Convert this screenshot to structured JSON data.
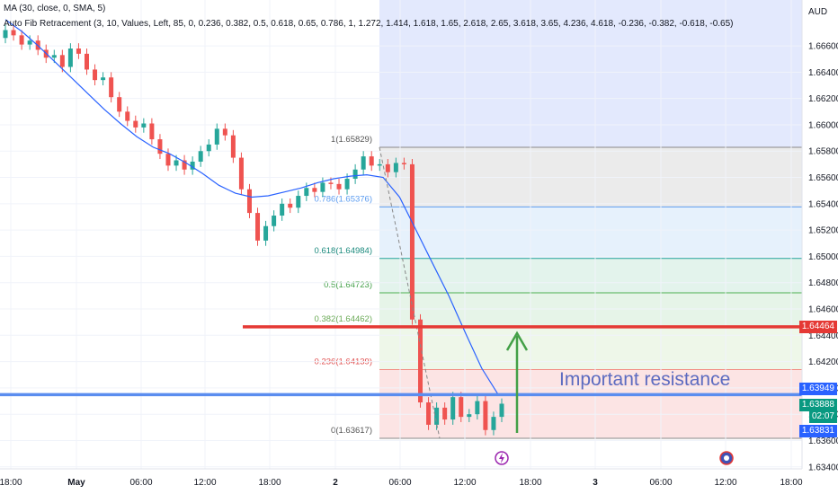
{
  "header": {
    "ma_legend": "MA (30, close, 0, SMA, 5)",
    "fib_legend": "Auto Fib Retracement (3, 10, Values, Left, 85, 0, 0.236, 0.382, 0.5, 0.618, 0.65, 0.786, 1, 1.272, 1.414, 1.618, 1.65, 2.618, 2.65, 3.618, 3.65, 4.236, 4.618, -0.236, -0.382, -0.618, -0.65)"
  },
  "currency": "AUD",
  "annotation": "Important resistance",
  "price_tags": {
    "red_level": "1.64464",
    "blue_level": "1.63949",
    "last_price": "1.63888",
    "countdown": "02:07",
    "low_marker": "1.63831"
  },
  "colors": {
    "up": "#26a69a",
    "down": "#ef5350",
    "ma": "#2962ff",
    "red_line": "#e53935",
    "blue_line": "#5b8def",
    "arrow": "#43a047",
    "annotation": "#5c6bc0"
  },
  "chart_data": {
    "type": "candlestick",
    "y_axis_ticks": [
      "1.66600",
      "1.66400",
      "1.66200",
      "1.66000",
      "1.65800",
      "1.65600",
      "1.65400",
      "1.65200",
      "1.65000",
      "1.64800",
      "1.64600",
      "1.64400",
      "1.64200",
      "1.64000",
      "1.63800",
      "1.63600",
      "1.63400"
    ],
    "x_axis_ticks": [
      "18:00",
      "May",
      "06:00",
      "12:00",
      "18:00",
      "2",
      "06:00",
      "12:00",
      "18:00",
      "3",
      "06:00",
      "12:00",
      "18:00"
    ],
    "ylim": [
      1.634,
      1.6685
    ],
    "fib_levels": [
      {
        "ratio": "1",
        "price": "1.65829",
        "value": 1.65829
      },
      {
        "ratio": "0.786",
        "price": "1.65376",
        "value": 1.65376
      },
      {
        "ratio": "0.618",
        "price": "1.64984",
        "value": 1.64984
      },
      {
        "ratio": "0.5",
        "price": "1.64723",
        "value": 1.64723
      },
      {
        "ratio": "0.382",
        "price": "1.64462",
        "value": 1.64462
      },
      {
        "ratio": "0.236",
        "price": "1.64139",
        "value": 1.64139
      },
      {
        "ratio": "0",
        "price": "1.63617",
        "value": 1.63617
      }
    ],
    "horizontal_lines": [
      {
        "name": "red",
        "value": 1.64464
      },
      {
        "name": "blue",
        "value": 1.63949
      }
    ],
    "close_path": [
      1.6672,
      1.6668,
      1.6661,
      1.6664,
      1.6657,
      1.6651,
      1.6653,
      1.6644,
      1.6658,
      1.6654,
      1.6642,
      1.6634,
      1.6636,
      1.6621,
      1.661,
      1.6603,
      1.6598,
      1.6601,
      1.6589,
      1.6578,
      1.6569,
      1.6573,
      1.6566,
      1.6572,
      1.658,
      1.6585,
      1.6597,
      1.6592,
      1.6575,
      1.6551,
      1.6533,
      1.6512,
      1.6523,
      1.6531,
      1.654,
      1.6537,
      1.6546,
      1.6552,
      1.6549,
      1.6556,
      1.6555,
      1.6551,
      1.6559,
      1.6566,
      1.6576,
      1.6569,
      1.657,
      1.6564,
      1.6571,
      1.657,
      1.6452,
      1.6389,
      1.6372,
      1.6385,
      1.6376,
      1.6393,
      1.6378,
      1.638,
      1.639,
      1.6368,
      1.6378,
      1.6388
    ],
    "ma_path": [
      1.668,
      1.6671,
      1.666,
      1.6648,
      1.6636,
      1.6624,
      1.6612,
      1.6601,
      1.6591,
      1.6583,
      1.6578,
      1.6571,
      1.6563,
      1.6554,
      1.6548,
      1.6545,
      1.6546,
      1.6549,
      1.6552,
      1.6556,
      1.6559,
      1.6561,
      1.6562,
      1.656,
      1.6545,
      1.652,
      1.6495,
      1.647,
      1.6442,
      1.6415,
      1.6395
    ]
  }
}
